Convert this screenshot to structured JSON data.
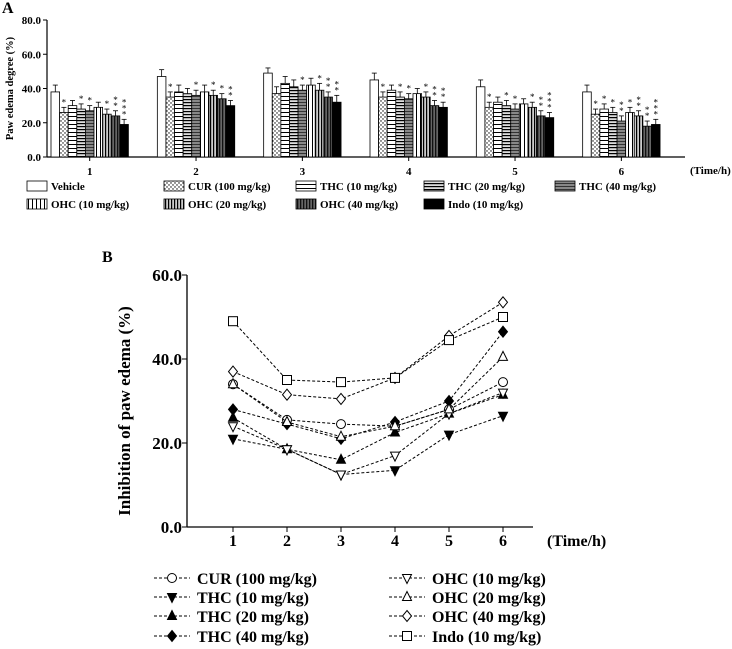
{
  "panel_a": {
    "panel_label": "A",
    "chart_data": {
      "type": "bar",
      "title": "",
      "ylabel": "Paw edema degree (%)",
      "xlabel": "(Time/h)",
      "ylim": [
        0,
        80
      ],
      "yticks": [
        "0.0",
        "20.0",
        "40.0",
        "60.0",
        "80.0"
      ],
      "categories": [
        "1",
        "2",
        "3",
        "4",
        "5",
        "6"
      ],
      "series": [
        {
          "name": "Vehicle",
          "pattern": "white",
          "values": [
            38,
            47,
            49,
            45,
            41,
            38
          ],
          "errors": [
            4,
            4,
            3,
            4,
            4,
            4
          ],
          "sig": [
            "",
            "",
            "",
            "",
            "",
            ""
          ]
        },
        {
          "name": "CUR (100 mg/kg)",
          "pattern": "dots",
          "values": [
            26,
            35,
            37,
            35,
            29,
            25
          ],
          "errors": [
            3,
            3,
            4,
            3,
            3,
            3
          ],
          "sig": [
            "*",
            "*",
            "",
            "*",
            "*",
            "*"
          ]
        },
        {
          "name": "THC (10 mg/kg)",
          "pattern": "hlines",
          "values": [
            30,
            38,
            43,
            39,
            32,
            28
          ],
          "errors": [
            3,
            4,
            4,
            3,
            3,
            3
          ],
          "sig": [
            "",
            "",
            "",
            "",
            "",
            "*"
          ]
        },
        {
          "name": "THC (20 mg/kg)",
          "pattern": "hlines-dense",
          "values": [
            28,
            37,
            41,
            35,
            30,
            26
          ],
          "errors": [
            3,
            3,
            4,
            3,
            3,
            3
          ],
          "sig": [
            "*",
            "",
            "",
            "*",
            "*",
            "*"
          ]
        },
        {
          "name": "THC (40 mg/kg)",
          "pattern": "gray-lines",
          "values": [
            27,
            36,
            39,
            34,
            28,
            21
          ],
          "errors": [
            3,
            3,
            3,
            3,
            3,
            3
          ],
          "sig": [
            "*",
            "*",
            "*",
            "*",
            "*",
            "**"
          ]
        },
        {
          "name": "OHC (10 mg/kg)",
          "pattern": "vlines",
          "values": [
            29,
            38,
            42,
            37,
            31,
            26
          ],
          "errors": [
            3,
            4,
            4,
            3,
            3,
            3
          ],
          "sig": [
            "",
            "",
            "",
            "",
            "",
            "*"
          ]
        },
        {
          "name": "OHC (20 mg/kg)",
          "pattern": "vlines-dense",
          "values": [
            25,
            36,
            39,
            35,
            29,
            24
          ],
          "errors": [
            3,
            3,
            4,
            3,
            3,
            3
          ],
          "sig": [
            "*",
            "*",
            "*",
            "*",
            "*",
            "**"
          ]
        },
        {
          "name": "OHC (40 mg/kg)",
          "pattern": "dark-vlines",
          "values": [
            24,
            34,
            35,
            30,
            24,
            18
          ],
          "errors": [
            3,
            3,
            3,
            3,
            3,
            3
          ],
          "sig": [
            "**",
            "*",
            "**",
            "**",
            "**",
            "**"
          ]
        },
        {
          "name": "Indo (10 mg/kg)",
          "pattern": "black",
          "values": [
            19,
            30,
            32,
            29,
            23,
            19
          ],
          "errors": [
            3,
            3,
            4,
            3,
            3,
            3
          ],
          "sig": [
            "***",
            "**",
            "**",
            "**",
            "***",
            "***"
          ]
        }
      ]
    }
  },
  "panel_b": {
    "panel_label": "B",
    "chart_data": {
      "type": "line",
      "title": "",
      "ylabel": "Inhibition of paw edema (%)",
      "xlabel": "(Time/h)",
      "ylim": [
        0,
        60
      ],
      "yticks": [
        "0.0",
        "20.0",
        "40.0",
        "60.0"
      ],
      "x": [
        "1",
        "2",
        "3",
        "4",
        "5",
        "6"
      ],
      "series": [
        {
          "name": "CUR (100 mg/kg)",
          "marker": "circle-open",
          "values": [
            34,
            25.5,
            24.5,
            24,
            28,
            34.5
          ]
        },
        {
          "name": "THC (10 mg/kg)",
          "marker": "tri-down-filled",
          "values": [
            21,
            18.5,
            12.5,
            13.5,
            22,
            26.5
          ]
        },
        {
          "name": "THC (20 mg/kg)",
          "marker": "tri-up-filled",
          "values": [
            26,
            18.5,
            16,
            22.5,
            27,
            31.5
          ]
        },
        {
          "name": "THC (40 mg/kg)",
          "marker": "diamond-filled",
          "values": [
            28,
            24.5,
            21,
            25,
            30,
            46.5
          ]
        },
        {
          "name": "OHC (10 mg/kg)",
          "marker": "tri-down-open",
          "values": [
            24,
            18.5,
            12.5,
            17,
            27,
            32
          ]
        },
        {
          "name": "OHC (20 mg/kg)",
          "marker": "tri-up-open",
          "values": [
            34,
            25,
            21.5,
            24,
            28,
            40.5
          ]
        },
        {
          "name": "OHC (40 mg/kg)",
          "marker": "diamond-open",
          "values": [
            37,
            31.5,
            30.5,
            35.5,
            45.5,
            53.5
          ]
        },
        {
          "name": "Indo (10 mg/kg)",
          "marker": "square-open",
          "values": [
            49,
            35,
            34.5,
            35.5,
            44.5,
            50
          ]
        }
      ]
    }
  }
}
